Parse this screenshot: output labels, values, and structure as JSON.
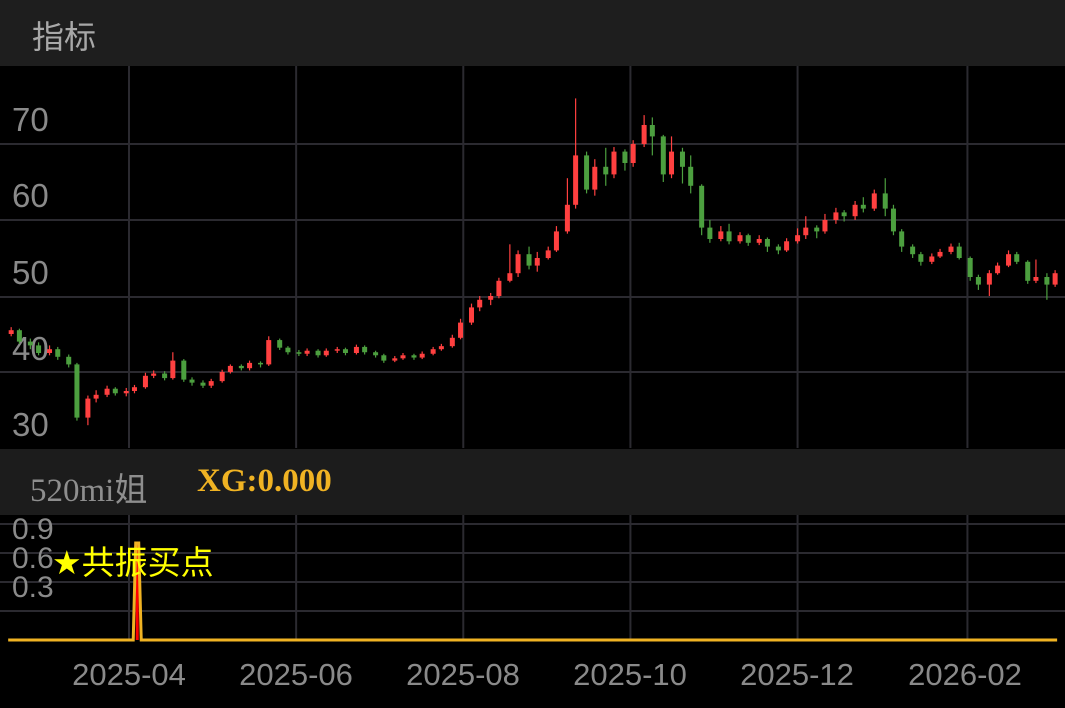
{
  "header": {
    "title": "指标"
  },
  "indicator_header": {
    "name": "520mi姐",
    "value_label": "XG:0.000"
  },
  "colors": {
    "up": "#ff4040",
    "down": "#4c9f3f",
    "indicator_line": "#f0b323",
    "signal_bar": "#ff0000",
    "signal_text": "#ffff00",
    "grid": "#2b2a30"
  },
  "chart_data": [
    {
      "type": "candlestick",
      "yticks": [
        "30",
        "40",
        "50",
        "60",
        "70"
      ],
      "ylim": [
        30,
        75
      ],
      "grid": true,
      "xticks": [
        "2025-04",
        "2025-06",
        "2025-08",
        "2025-10",
        "2025-12",
        "2026-02"
      ],
      "columns": [
        "date",
        "open",
        "high",
        "low",
        "close"
      ],
      "candles": [
        [
          "2025-02-17",
          45.0,
          45.9,
          44.7,
          45.5
        ],
        [
          "2025-02-20",
          45.5,
          45.7,
          43.7,
          44.0
        ],
        [
          "2025-02-24",
          44.0,
          44.4,
          43.0,
          43.5
        ],
        [
          "2025-02-27",
          43.5,
          43.9,
          42.2,
          42.5
        ],
        [
          "2025-03-03",
          42.5,
          43.5,
          42.2,
          43.0
        ],
        [
          "2025-03-06",
          43.0,
          43.3,
          41.6,
          42.0
        ],
        [
          "2025-03-10",
          42.0,
          42.3,
          40.6,
          41.0
        ],
        [
          "2025-03-13",
          41.0,
          41.2,
          33.6,
          34.0
        ],
        [
          "2025-03-17",
          34.0,
          36.9,
          33.0,
          36.5
        ],
        [
          "2025-03-20",
          36.5,
          37.6,
          36.0,
          37.0
        ],
        [
          "2025-03-24",
          37.0,
          38.2,
          36.7,
          37.8
        ],
        [
          "2025-03-27",
          37.8,
          38.0,
          36.9,
          37.2
        ],
        [
          "2025-03-31",
          37.2,
          37.9,
          36.8,
          37.5
        ],
        [
          "2025-04-03",
          37.5,
          38.3,
          37.2,
          38.0
        ],
        [
          "2025-04-07",
          38.0,
          39.9,
          37.8,
          39.5
        ],
        [
          "2025-04-10",
          39.5,
          40.2,
          39.2,
          39.8
        ],
        [
          "2025-04-14",
          39.8,
          40.1,
          38.9,
          39.2
        ],
        [
          "2025-04-17",
          39.2,
          42.6,
          39.0,
          41.5
        ],
        [
          "2025-04-21",
          41.5,
          41.7,
          38.7,
          39.0
        ],
        [
          "2025-04-24",
          39.0,
          39.3,
          38.2,
          38.6
        ],
        [
          "2025-04-28",
          38.6,
          38.9,
          37.9,
          38.2
        ],
        [
          "2025-05-01",
          38.2,
          39.1,
          37.9,
          38.8
        ],
        [
          "2025-05-05",
          38.8,
          40.3,
          38.6,
          40.0
        ],
        [
          "2025-05-08",
          40.0,
          41.0,
          39.8,
          40.8
        ],
        [
          "2025-05-12",
          40.8,
          41.0,
          40.2,
          40.5
        ],
        [
          "2025-05-15",
          40.5,
          41.5,
          40.2,
          41.2
        ],
        [
          "2025-05-19",
          41.2,
          41.4,
          40.6,
          41.0
        ],
        [
          "2025-05-22",
          41.0,
          44.7,
          40.8,
          44.2
        ],
        [
          "2025-05-26",
          44.2,
          44.4,
          42.9,
          43.2
        ],
        [
          "2025-05-29",
          43.2,
          43.4,
          42.3,
          42.6
        ],
        [
          "2025-06-02",
          42.6,
          42.9,
          42.1,
          42.4
        ],
        [
          "2025-06-05",
          42.4,
          43.1,
          42.1,
          42.8
        ],
        [
          "2025-06-09",
          42.8,
          43.0,
          41.9,
          42.2
        ],
        [
          "2025-06-12",
          42.2,
          43.1,
          42.0,
          42.8
        ],
        [
          "2025-06-16",
          42.8,
          43.3,
          42.5,
          43.0
        ],
        [
          "2025-06-19",
          43.0,
          43.2,
          42.2,
          42.5
        ],
        [
          "2025-06-23",
          42.5,
          43.6,
          42.3,
          43.3
        ],
        [
          "2025-06-26",
          43.3,
          43.5,
          42.3,
          42.6
        ],
        [
          "2025-06-30",
          42.6,
          42.8,
          41.9,
          42.2
        ],
        [
          "2025-07-03",
          42.2,
          42.4,
          41.2,
          41.5
        ],
        [
          "2025-07-07",
          41.5,
          42.1,
          41.3,
          41.8
        ],
        [
          "2025-07-10",
          41.8,
          42.5,
          41.6,
          42.2
        ],
        [
          "2025-07-14",
          42.2,
          42.4,
          41.6,
          41.9
        ],
        [
          "2025-07-17",
          41.9,
          42.7,
          41.7,
          42.4
        ],
        [
          "2025-07-21",
          42.4,
          43.3,
          42.2,
          43.0
        ],
        [
          "2025-07-24",
          43.0,
          43.7,
          42.8,
          43.4
        ],
        [
          "2025-07-28",
          43.4,
          44.9,
          43.2,
          44.5
        ],
        [
          "2025-07-31",
          44.5,
          47.0,
          44.3,
          46.5
        ],
        [
          "2025-08-04",
          46.5,
          49.0,
          46.2,
          48.5
        ],
        [
          "2025-08-07",
          48.5,
          50.0,
          48.0,
          49.5
        ],
        [
          "2025-08-11",
          49.5,
          50.4,
          48.8,
          50.0
        ],
        [
          "2025-08-14",
          50.0,
          52.4,
          49.7,
          52.0
        ],
        [
          "2025-08-18",
          52.0,
          56.8,
          51.8,
          53.0
        ],
        [
          "2025-08-21",
          53.0,
          56.0,
          52.5,
          55.5
        ],
        [
          "2025-08-25",
          55.5,
          56.5,
          53.5,
          54.0
        ],
        [
          "2025-08-28",
          54.0,
          55.8,
          53.2,
          55.0
        ],
        [
          "2025-09-01",
          55.0,
          56.5,
          54.8,
          56.0
        ],
        [
          "2025-09-04",
          56.0,
          59.2,
          55.8,
          58.5
        ],
        [
          "2025-09-08",
          58.5,
          65.5,
          58.2,
          62.0
        ],
        [
          "2025-09-11",
          62.0,
          76.0,
          61.5,
          68.5
        ],
        [
          "2025-09-15",
          68.5,
          69.0,
          63.5,
          64.0
        ],
        [
          "2025-09-18",
          64.0,
          68.0,
          63.2,
          67.0
        ],
        [
          "2025-09-22",
          67.0,
          69.5,
          64.5,
          66.0
        ],
        [
          "2025-09-25",
          66.0,
          69.6,
          65.5,
          69.0
        ],
        [
          "2025-09-29",
          69.0,
          69.3,
          66.5,
          67.5
        ],
        [
          "2025-10-02",
          67.5,
          70.5,
          67.0,
          70.0
        ],
        [
          "2025-10-06",
          70.0,
          73.8,
          69.6,
          72.5
        ],
        [
          "2025-10-09",
          72.5,
          73.5,
          68.5,
          71.0
        ],
        [
          "2025-10-13",
          71.0,
          71.2,
          65.0,
          66.0
        ],
        [
          "2025-10-16",
          66.0,
          71.0,
          65.5,
          69.0
        ],
        [
          "2025-10-20",
          69.0,
          69.5,
          64.8,
          67.0
        ],
        [
          "2025-10-23",
          67.0,
          68.5,
          63.5,
          64.5
        ],
        [
          "2025-10-27",
          64.5,
          64.7,
          58.0,
          59.0
        ],
        [
          "2025-10-30",
          59.0,
          60.0,
          57.0,
          57.5
        ],
        [
          "2025-11-03",
          57.5,
          59.2,
          57.2,
          58.5
        ],
        [
          "2025-11-06",
          58.5,
          59.5,
          56.8,
          57.2
        ],
        [
          "2025-11-10",
          57.2,
          58.4,
          56.9,
          58.0
        ],
        [
          "2025-11-13",
          58.0,
          58.2,
          56.6,
          57.0
        ],
        [
          "2025-11-17",
          57.0,
          58.0,
          56.7,
          57.5
        ],
        [
          "2025-11-20",
          57.5,
          57.7,
          55.8,
          56.5
        ],
        [
          "2025-11-24",
          56.5,
          56.8,
          55.5,
          56.0
        ],
        [
          "2025-11-27",
          56.0,
          57.6,
          55.8,
          57.2
        ],
        [
          "2025-12-01",
          57.2,
          58.9,
          56.9,
          58.0
        ],
        [
          "2025-12-04",
          58.0,
          60.5,
          57.5,
          59.0
        ],
        [
          "2025-12-08",
          59.0,
          59.3,
          57.6,
          58.5
        ],
        [
          "2025-12-11",
          58.5,
          60.8,
          58.2,
          60.0
        ],
        [
          "2025-12-15",
          60.0,
          61.6,
          59.5,
          61.0
        ],
        [
          "2025-12-18",
          61.0,
          61.3,
          59.8,
          60.5
        ],
        [
          "2025-12-22",
          60.5,
          62.5,
          60.0,
          62.0
        ],
        [
          "2025-12-25",
          62.0,
          63.0,
          61.0,
          61.5
        ],
        [
          "2025-12-29",
          61.5,
          64.0,
          61.2,
          63.5
        ],
        [
          "2026-01-02",
          63.5,
          65.5,
          60.5,
          61.5
        ],
        [
          "2026-01-05",
          61.5,
          62.0,
          58.0,
          58.5
        ],
        [
          "2026-01-08",
          58.5,
          58.8,
          55.8,
          56.5
        ],
        [
          "2026-01-12",
          56.5,
          56.8,
          55.0,
          55.5
        ],
        [
          "2026-01-15",
          55.5,
          55.8,
          54.0,
          54.5
        ],
        [
          "2026-01-19",
          54.5,
          55.6,
          54.2,
          55.2
        ],
        [
          "2026-01-22",
          55.2,
          56.2,
          55.0,
          55.8
        ],
        [
          "2026-01-26",
          55.8,
          56.9,
          55.5,
          56.5
        ],
        [
          "2026-01-29",
          56.5,
          57.0,
          54.8,
          55.0
        ],
        [
          "2026-02-02",
          55.0,
          55.2,
          52.0,
          52.5
        ],
        [
          "2026-02-05",
          52.5,
          52.8,
          50.8,
          51.5
        ],
        [
          "2026-02-09",
          51.5,
          53.4,
          50.0,
          53.0
        ],
        [
          "2026-02-12",
          53.0,
          54.4,
          52.8,
          54.0
        ],
        [
          "2026-02-16",
          54.0,
          56.0,
          53.8,
          55.5
        ],
        [
          "2026-02-19",
          55.5,
          55.8,
          54.2,
          54.5
        ],
        [
          "2026-02-23",
          54.5,
          54.7,
          51.6,
          52.0
        ],
        [
          "2026-02-26",
          52.0,
          54.8,
          51.7,
          52.5
        ],
        [
          "2026-03-02",
          52.5,
          53.0,
          49.5,
          51.5
        ],
        [
          "2026-03-05",
          51.5,
          53.4,
          51.2,
          53.0
        ]
      ]
    },
    {
      "type": "line",
      "name": "XG",
      "yticks": [
        "0.3",
        "0.6",
        "0.9"
      ],
      "ylim": [
        0,
        1.2
      ],
      "grid": true,
      "x_range": [
        "2025-02-17",
        "2026-03-05"
      ],
      "baseline_value": 0,
      "signals": [
        {
          "date": "2025-04-04",
          "value": 1
        }
      ],
      "annotation": "★共振买点"
    }
  ]
}
